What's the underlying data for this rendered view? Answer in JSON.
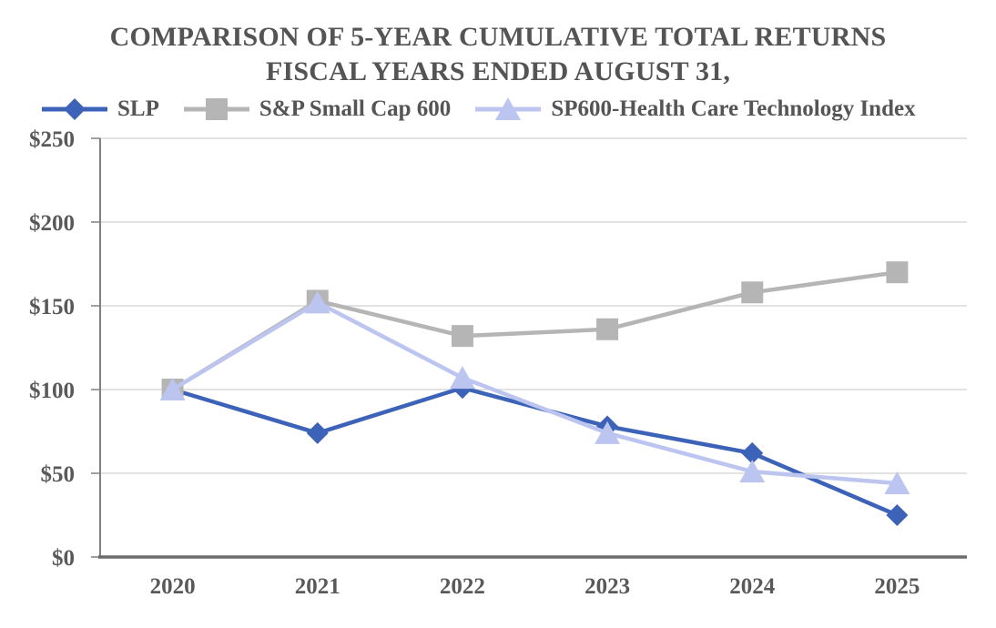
{
  "title": {
    "line1": "COMPARISON OF 5-YEAR CUMULATIVE TOTAL RETURNS",
    "line2": "FISCAL YEARS ENDED AUGUST 31,"
  },
  "colors": {
    "text": "#595959",
    "title": "#545454",
    "gridline": "#D9D9D9",
    "y_axis": "#808080",
    "x_axis": "#6B6B6B",
    "background": "#FFFFFF"
  },
  "chart_data": {
    "type": "line",
    "title": "COMPARISON OF 5-YEAR CUMULATIVE TOTAL RETURNS FISCAL YEARS ENDED AUGUST 31,",
    "xlabel": "",
    "ylabel": "",
    "ylim": [
      0,
      250
    ],
    "grid": true,
    "legend_position": "top",
    "categories": [
      "2020",
      "2021",
      "2022",
      "2023",
      "2024",
      "2025"
    ],
    "y_ticks": [
      {
        "value": 0,
        "label": "$0"
      },
      {
        "value": 50,
        "label": "$50"
      },
      {
        "value": 100,
        "label": "$100"
      },
      {
        "value": 150,
        "label": "$150"
      },
      {
        "value": 200,
        "label": "$200"
      },
      {
        "value": 250,
        "label": "$250"
      }
    ],
    "series": [
      {
        "name": "SLP",
        "marker": "diamond",
        "color": "#3D63B8",
        "line_width": 4.5,
        "values": [
          100,
          74,
          101,
          78,
          62,
          25
        ]
      },
      {
        "name": "S&P Small Cap 600",
        "marker": "square",
        "color": "#B5B5B5",
        "line_width": 4.5,
        "values": [
          100,
          153,
          132,
          136,
          158,
          170
        ]
      },
      {
        "name": "SP600-Health Care Technology Index",
        "marker": "triangle",
        "color": "#BCC5F0",
        "line_width": 4.5,
        "values": [
          100,
          152,
          107,
          74,
          51,
          44
        ]
      }
    ]
  }
}
